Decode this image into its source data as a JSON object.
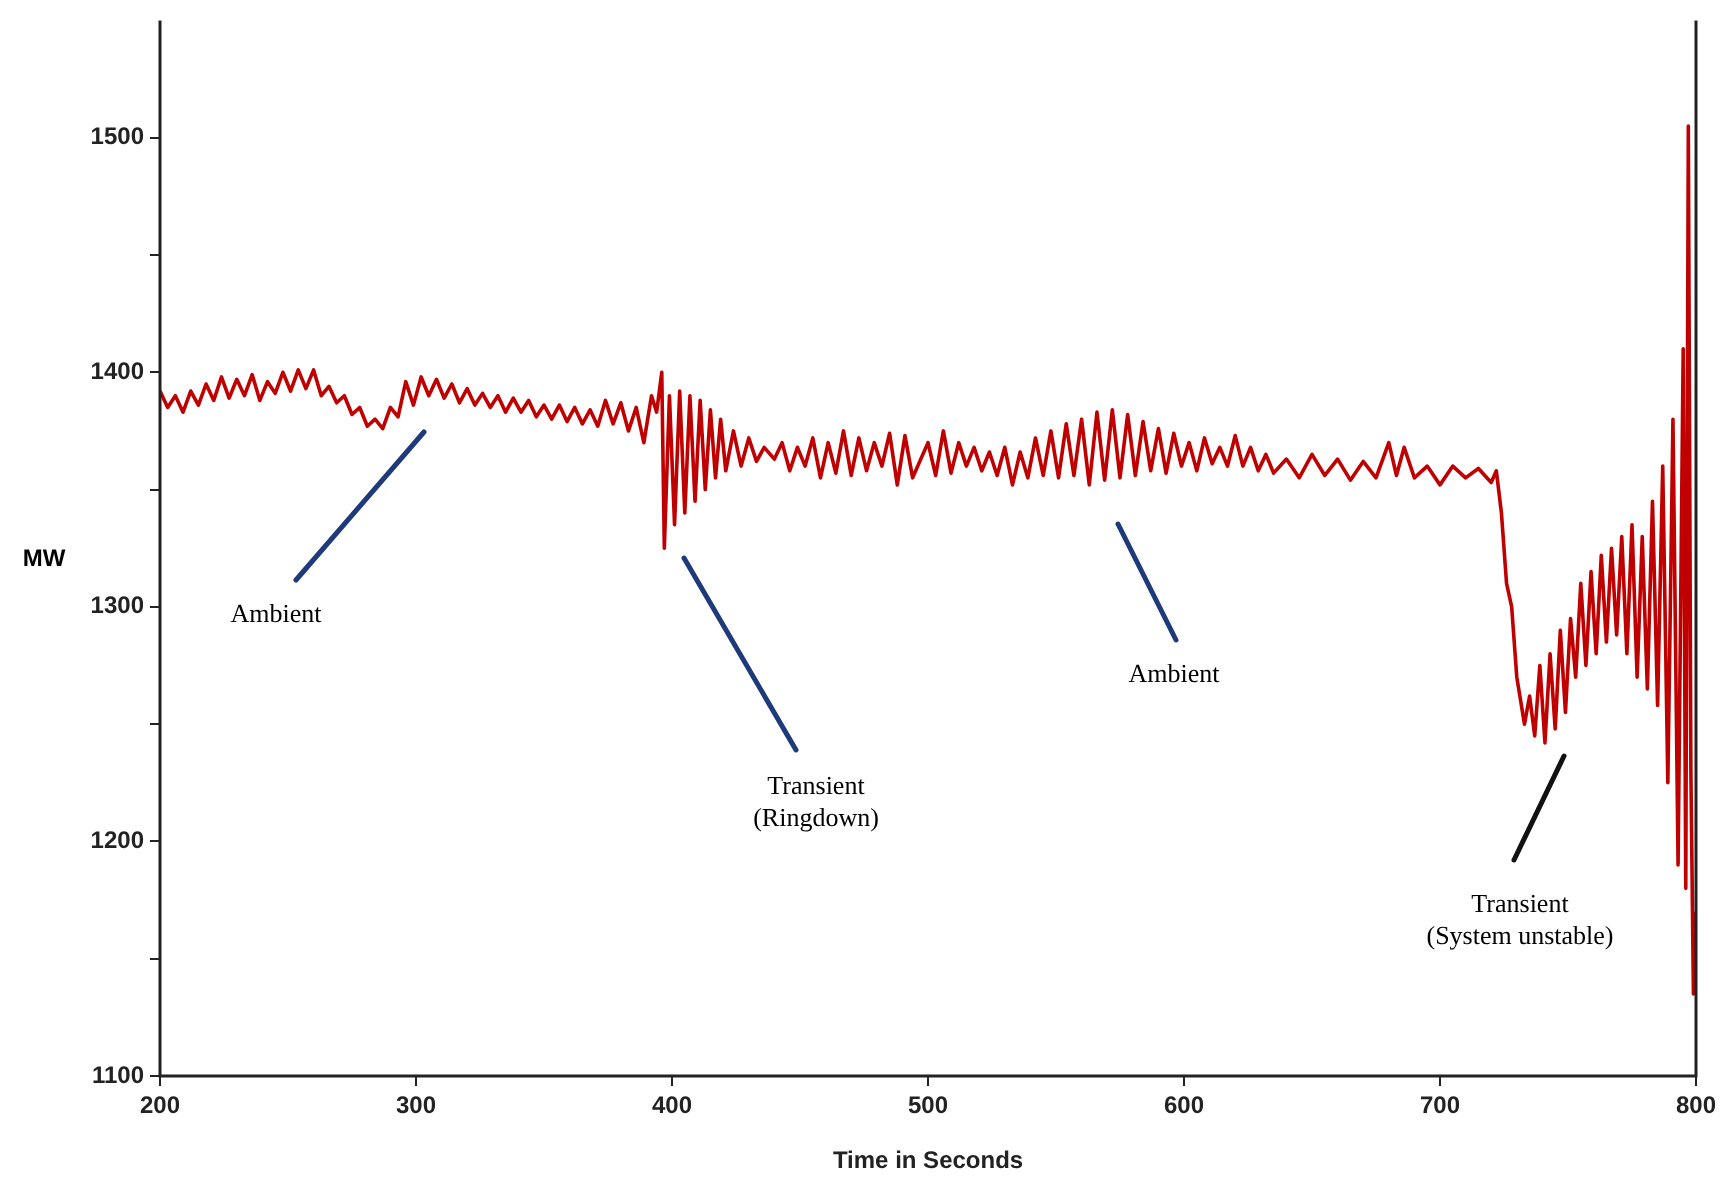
{
  "chart_data": {
    "type": "line",
    "xlabel": "Time in Seconds",
    "ylabel": "MW",
    "xlim": [
      200,
      800
    ],
    "xticks": [
      200,
      300,
      400,
      500,
      600,
      700,
      800
    ],
    "ylim": [
      1100,
      1550
    ],
    "yticks": [
      1100,
      {
        "value": 1150,
        "label": null
      },
      1200,
      {
        "value": 1250,
        "label": null
      },
      1300,
      {
        "value": 1350,
        "label": null
      },
      1400,
      {
        "value": 1450,
        "label": null
      },
      1500
    ],
    "grid": false,
    "legend": false,
    "marker": "none",
    "line_style": "solid",
    "annotations": [
      "Ambient",
      "Transient\n(Ringdown)",
      "Ambient",
      "Transient\n(System unstable)"
    ],
    "series": [
      {
        "color": "#c00000",
        "x": [
          200,
          203,
          206,
          209,
          212,
          215,
          218,
          221,
          224,
          227,
          230,
          233,
          236,
          239,
          242,
          245,
          248,
          251,
          254,
          257,
          260,
          263,
          266,
          269,
          272,
          275,
          278,
          281,
          284,
          287,
          290,
          293,
          296,
          299,
          302,
          305,
          308,
          311,
          314,
          317,
          320,
          323,
          326,
          329,
          332,
          335,
          338,
          341,
          344,
          347,
          350,
          353,
          356,
          359,
          362,
          365,
          368,
          371,
          374,
          377,
          380,
          383,
          386,
          389,
          392,
          394,
          396,
          397,
          399,
          401,
          403,
          405,
          407,
          409,
          411,
          413,
          415,
          417,
          419,
          421,
          424,
          427,
          430,
          433,
          436,
          440,
          443,
          446,
          449,
          452,
          455,
          458,
          461,
          464,
          467,
          470,
          473,
          476,
          479,
          482,
          485,
          488,
          491,
          494,
          500,
          503,
          506,
          509,
          512,
          515,
          518,
          521,
          524,
          527,
          530,
          533,
          536,
          539,
          542,
          545,
          548,
          551,
          554,
          557,
          560,
          563,
          566,
          569,
          572,
          575,
          578,
          581,
          584,
          587,
          590,
          593,
          596,
          599,
          602,
          605,
          608,
          611,
          614,
          617,
          620,
          623,
          626,
          629,
          632,
          635,
          640,
          645,
          650,
          655,
          660,
          665,
          670,
          675,
          680,
          683,
          686,
          690,
          695,
          700,
          705,
          710,
          715,
          720,
          722,
          724,
          726,
          728,
          730,
          733,
          735,
          737,
          739,
          741,
          743,
          745,
          747,
          749,
          751,
          753,
          755,
          757,
          759,
          761,
          763,
          765,
          767,
          769,
          771,
          773,
          775,
          777,
          779,
          781,
          783,
          785,
          787,
          789,
          791,
          793,
          795,
          796,
          797,
          798,
          799,
          800
        ],
        "values": [
          1392,
          1385,
          1390,
          1383,
          1392,
          1386,
          1395,
          1388,
          1398,
          1389,
          1397,
          1390,
          1399,
          1388,
          1396,
          1391,
          1400,
          1392,
          1401,
          1393,
          1401,
          1390,
          1394,
          1387,
          1390,
          1382,
          1385,
          1377,
          1380,
          1376,
          1385,
          1381,
          1396,
          1386,
          1398,
          1390,
          1397,
          1389,
          1395,
          1387,
          1393,
          1386,
          1391,
          1385,
          1390,
          1383,
          1389,
          1383,
          1388,
          1381,
          1386,
          1380,
          1386,
          1379,
          1385,
          1378,
          1384,
          1377,
          1388,
          1378,
          1387,
          1375,
          1385,
          1370,
          1390,
          1383,
          1400,
          1325,
          1390,
          1335,
          1392,
          1340,
          1390,
          1345,
          1388,
          1350,
          1384,
          1355,
          1380,
          1358,
          1375,
          1360,
          1372,
          1362,
          1368,
          1363,
          1370,
          1358,
          1368,
          1360,
          1372,
          1355,
          1370,
          1357,
          1375,
          1356,
          1372,
          1358,
          1370,
          1360,
          1374,
          1352,
          1373,
          1355,
          1370,
          1356,
          1375,
          1357,
          1370,
          1360,
          1368,
          1358,
          1366,
          1356,
          1368,
          1352,
          1366,
          1355,
          1372,
          1356,
          1375,
          1355,
          1378,
          1356,
          1380,
          1352,
          1383,
          1354,
          1384,
          1355,
          1382,
          1356,
          1379,
          1358,
          1376,
          1357,
          1374,
          1360,
          1370,
          1358,
          1372,
          1361,
          1368,
          1360,
          1373,
          1360,
          1368,
          1358,
          1365,
          1357,
          1363,
          1355,
          1365,
          1356,
          1363,
          1354,
          1362,
          1355,
          1370,
          1356,
          1368,
          1355,
          1360,
          1352,
          1360,
          1355,
          1359,
          1353,
          1358,
          1340,
          1310,
          1300,
          1270,
          1250,
          1262,
          1245,
          1275,
          1242,
          1280,
          1248,
          1290,
          1255,
          1295,
          1270,
          1310,
          1275,
          1315,
          1280,
          1322,
          1285,
          1325,
          1288,
          1330,
          1280,
          1335,
          1270,
          1330,
          1265,
          1345,
          1258,
          1360,
          1225,
          1380,
          1190,
          1410,
          1180,
          1505,
          1230,
          1135,
          1170
        ]
      }
    ]
  }
}
